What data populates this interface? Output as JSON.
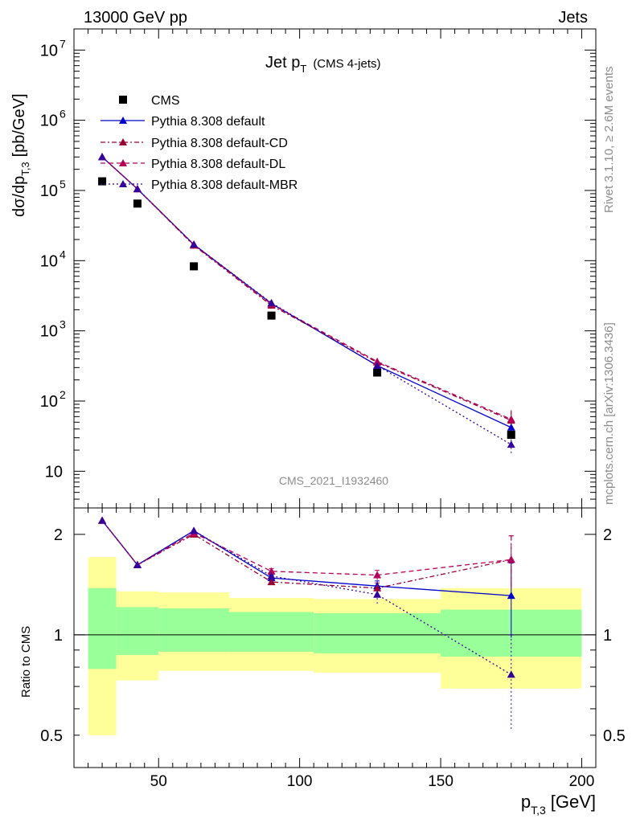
{
  "header": {
    "energy_label": "13000 GeV pp",
    "category_label": "Jets",
    "plot_title_main": "Jet p",
    "plot_title_sub": "T",
    "plot_title_extra": "(CMS 4-jets)",
    "analysis_id": "CMS_2021_I1932460",
    "rivet_label": "Rivet 3.1.10, ≥ 2.6M events",
    "source_label": "mcplots.cern.ch [arXiv:1306.3436]"
  },
  "axes": {
    "main_ylabel": "dσ/dp",
    "main_ylabel_sub": "T,3",
    "main_ylabel_unit": "[pb/GeV]",
    "ratio_ylabel": "Ratio to CMS",
    "xlabel_main": "p",
    "xlabel_sub": "T,3",
    "xlabel_unit": "[GeV]"
  },
  "colors": {
    "data": "#000000",
    "default": "#0000cc",
    "cd": "#990033",
    "dl": "#b3005a",
    "mbr": "#330099",
    "band_inner": "#99ff99",
    "band_outer": "#ffff99"
  },
  "chart_data": [
    {
      "type": "scatter",
      "panel": "main",
      "yscale": "log",
      "xlim": [
        20,
        205
      ],
      "ylim": [
        3,
        20000000
      ],
      "x_ticks": [
        50,
        100,
        150,
        200
      ],
      "y_ticks": [
        {
          "value": 10,
          "label": "10",
          "exp": ""
        },
        {
          "value": 100,
          "label": "10",
          "exp": "2"
        },
        {
          "value": 1000,
          "label": "10",
          "exp": "3"
        },
        {
          "value": 10000,
          "label": "10",
          "exp": "4"
        },
        {
          "value": 100000,
          "label": "10",
          "exp": "5"
        },
        {
          "value": 1000000,
          "label": "10",
          "exp": "6"
        },
        {
          "value": 10000000,
          "label": "10",
          "exp": "7"
        }
      ],
      "series": [
        {
          "name": "CMS",
          "key": "data",
          "style": "square",
          "x": [
            30,
            42.5,
            62.5,
            90,
            127.5,
            175
          ],
          "y": [
            135000,
            65000,
            8300,
            1650,
            255,
            33
          ]
        },
        {
          "name": "Pythia 8.308 default",
          "key": "default",
          "style": "solid",
          "x": [
            30,
            42.5,
            62.5,
            90,
            127.5,
            175
          ],
          "y": [
            300000,
            105000,
            17000,
            2450,
            320,
            42
          ]
        },
        {
          "name": "Pythia 8.308 default-CD",
          "key": "cd",
          "style": "dashdot",
          "x": [
            30,
            42.5,
            62.5,
            90,
            127.5,
            175
          ],
          "y": [
            300000,
            105000,
            16500,
            2300,
            355,
            53
          ]
        },
        {
          "name": "Pythia 8.308 default-DL",
          "key": "dl",
          "style": "dashed",
          "x": [
            30,
            42.5,
            62.5,
            90,
            127.5,
            175
          ],
          "y": [
            300000,
            105000,
            16800,
            2400,
            365,
            55
          ]
        },
        {
          "name": "Pythia 8.308 default-MBR",
          "key": "mbr",
          "style": "dotted",
          "x": [
            30,
            42.5,
            62.5,
            90,
            127.5,
            175
          ],
          "y": [
            300000,
            105000,
            17000,
            2500,
            320,
            24
          ]
        }
      ]
    },
    {
      "type": "line",
      "panel": "ratio",
      "yscale": "log",
      "xlim": [
        20,
        205
      ],
      "ylim": [
        0.4,
        2.4
      ],
      "x_ticks": [
        50,
        100,
        150,
        200
      ],
      "y_ticks": [
        {
          "value": 0.5,
          "label": "0.5"
        },
        {
          "value": 1,
          "label": "1"
        },
        {
          "value": 2,
          "label": "2"
        }
      ],
      "bands": [
        {
          "x0": 25,
          "x1": 35,
          "inner": [
            0.79,
            1.38
          ],
          "outer": [
            0.5,
            1.71
          ]
        },
        {
          "x0": 35,
          "x1": 50,
          "inner": [
            0.87,
            1.21
          ],
          "outer": [
            0.73,
            1.35
          ]
        },
        {
          "x0": 50,
          "x1": 75,
          "inner": [
            0.89,
            1.2
          ],
          "outer": [
            0.78,
            1.34
          ]
        },
        {
          "x0": 75,
          "x1": 105,
          "inner": [
            0.89,
            1.17
          ],
          "outer": [
            0.78,
            1.29
          ]
        },
        {
          "x0": 105,
          "x1": 150,
          "inner": [
            0.88,
            1.16
          ],
          "outer": [
            0.77,
            1.28
          ]
        },
        {
          "x0": 150,
          "x1": 200,
          "inner": [
            0.86,
            1.19
          ],
          "outer": [
            0.69,
            1.38
          ]
        }
      ],
      "series": [
        {
          "name": "Pythia 8.308 default",
          "key": "default",
          "style": "solid",
          "x": [
            30,
            42.5,
            62.5,
            90,
            127.5,
            175
          ],
          "y": [
            2.2,
            1.62,
            2.05,
            1.48,
            1.4,
            1.31
          ],
          "err": [
            0.02,
            0.02,
            0.02,
            0.03,
            0.05,
            0.33
          ]
        },
        {
          "name": "Pythia 8.308 default-CD",
          "key": "cd",
          "style": "dashdot",
          "x": [
            30,
            42.5,
            62.5,
            90,
            127.5,
            175
          ],
          "y": [
            2.2,
            1.62,
            2.0,
            1.44,
            1.38,
            1.68
          ],
          "err": [
            0.02,
            0.02,
            0.02,
            0.03,
            0.05,
            0.3
          ]
        },
        {
          "name": "Pythia 8.308 default-DL",
          "key": "dl",
          "style": "dashed",
          "x": [
            30,
            42.5,
            62.5,
            90,
            127.5,
            175
          ],
          "y": [
            2.2,
            1.62,
            2.02,
            1.55,
            1.51,
            1.68
          ],
          "err": [
            0.02,
            0.02,
            0.02,
            0.03,
            0.05,
            0.3
          ]
        },
        {
          "name": "Pythia 8.308 default-MBR",
          "key": "mbr",
          "style": "dotted",
          "x": [
            30,
            42.5,
            62.5,
            90,
            127.5,
            175
          ],
          "y": [
            2.2,
            1.62,
            2.05,
            1.5,
            1.32,
            0.76
          ],
          "err": [
            0.02,
            0.02,
            0.02,
            0.03,
            0.08,
            0.24
          ]
        }
      ]
    }
  ]
}
